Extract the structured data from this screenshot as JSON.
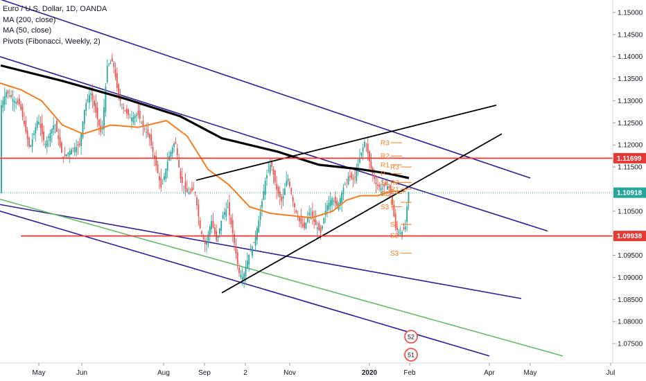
{
  "legend": {
    "title": "Euro / U.S. Dollar, 1D, OANDA",
    "ma200": "MA (200, close)",
    "ma50": "MA (50, close)",
    "pivots": "Pivots (Fibonacci, Weekly, 2)"
  },
  "colors": {
    "bull": "#26a69a",
    "bear": "#ef5350",
    "ma200": "#000000",
    "ma50": "#f57c1f",
    "channel": "#311b92",
    "green_line": "#66bb6a",
    "level": "#e53935",
    "trend": "#000000",
    "pivot": "#f57c1f",
    "last_price": "#26a69a"
  },
  "chart_data": {
    "type": "candlestick",
    "title": "Euro / U.S. Dollar, 1D, OANDA",
    "x_ticks": [
      "May",
      "Jun",
      "Aug",
      "Sep",
      "2",
      "Nov",
      "2020",
      "Feb",
      "Apr",
      "May",
      "Jul"
    ],
    "y_ticks": [
      "1.15000",
      "1.14500",
      "1.14000",
      "1.13500",
      "1.13000",
      "1.12500",
      "1.12000",
      "1.11500",
      "1.10500",
      "1.10000",
      "1.09500",
      "1.09000",
      "1.08500",
      "1.08000",
      "1.07500"
    ],
    "ylim": [
      1.071,
      1.152
    ],
    "grid": false,
    "series_ma200": [
      [
        1,
        1.138
      ],
      [
        90,
        1.1345
      ],
      [
        180,
        1.1305
      ],
      [
        260,
        1.1265
      ],
      [
        320,
        1.1215
      ],
      [
        400,
        1.1185
      ],
      [
        460,
        1.1155
      ],
      [
        520,
        1.1145
      ],
      [
        560,
        1.1135
      ],
      [
        590,
        1.1125
      ]
    ],
    "series_ma50": [
      [
        0,
        1.134
      ],
      [
        30,
        1.1325
      ],
      [
        60,
        1.13
      ],
      [
        90,
        1.1245
      ],
      [
        120,
        1.1225
      ],
      [
        160,
        1.1245
      ],
      [
        200,
        1.124
      ],
      [
        240,
        1.1255
      ],
      [
        270,
        1.122
      ],
      [
        300,
        1.1145
      ],
      [
        330,
        1.111
      ],
      [
        360,
        1.106
      ],
      [
        390,
        1.1045
      ],
      [
        420,
        1.104
      ],
      [
        450,
        1.1035
      ],
      [
        480,
        1.105
      ],
      [
        500,
        1.1075
      ],
      [
        520,
        1.1085
      ],
      [
        545,
        1.1085
      ],
      [
        565,
        1.1095
      ],
      [
        585,
        1.1095
      ]
    ],
    "channels": [
      {
        "name": "channel-top",
        "from": [
          0,
          1.153
        ],
        "to": [
          765,
          1.1125
        ]
      },
      {
        "name": "channel-upper",
        "from": [
          0,
          1.14
        ],
        "to": [
          790,
          1.1005
        ]
      },
      {
        "name": "channel-lower",
        "from": [
          0,
          1.1065
        ],
        "to": [
          752,
          1.0852
        ]
      },
      {
        "name": "channel-bottom",
        "from": [
          0,
          1.105
        ],
        "to": [
          706,
          1.0722
        ]
      }
    ],
    "green_line": {
      "from": [
        0,
        1.1077
      ],
      "to": [
        812,
        1.0722
      ]
    },
    "trend_lines": [
      {
        "name": "upper-wedge-line",
        "from": [
          283,
          1.112
        ],
        "to": [
          716,
          1.129
        ]
      },
      {
        "name": "lower-wedge-line",
        "from": [
          320,
          1.0865
        ],
        "to": [
          724,
          1.1225
        ]
      }
    ],
    "levels": [
      {
        "name": "resistance",
        "value": 1.11699,
        "label": "1.11699",
        "from": 0
      },
      {
        "name": "support",
        "value": 1.09938,
        "label": "1.09938",
        "from": 30
      }
    ],
    "last_price": {
      "value": 1.10918,
      "label": "1.10918"
    },
    "pivots_week1": [
      {
        "label": "R3",
        "value": 1.1205
      },
      {
        "label": "R2",
        "value": 1.1175
      },
      {
        "label": "R1",
        "value": 1.1155
      },
      {
        "label": "P",
        "value": 1.1135
      },
      {
        "label": "S1",
        "value": 1.1115
      },
      {
        "label": "S2",
        "value": 1.109
      },
      {
        "label": "S3",
        "value": 1.106
      }
    ],
    "pivots_week2": [
      {
        "label": "R3",
        "value": 1.115
      },
      {
        "label": "R2",
        "value": 1.1115
      },
      {
        "label": "R1",
        "value": 1.11
      },
      {
        "label": "P",
        "value": 1.107
      },
      {
        "label": "S1",
        "value": 1.102
      },
      {
        "label": "S2",
        "value": 1.0995
      },
      {
        "label": "S3",
        "value": 1.0955
      }
    ],
    "events": [
      {
        "name": "event-marker-top",
        "label": "52"
      },
      {
        "name": "event-marker-bottom",
        "label": "51"
      }
    ]
  }
}
